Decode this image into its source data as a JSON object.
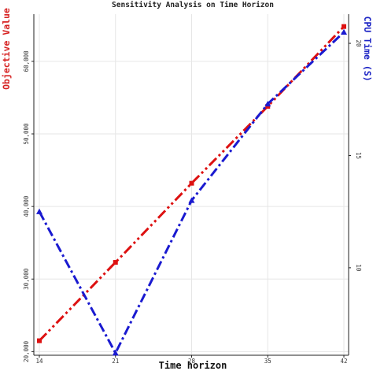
{
  "chart_data": {
    "type": "line",
    "title": "Sensitivity Analysis on Time Horizon",
    "xlabel": "Time horizon",
    "ylabel_left": "Objective Value",
    "ylabel_right": "CPU Time (S)",
    "x": [
      14,
      21,
      28,
      35,
      42
    ],
    "x_ticks": [
      "14",
      "21",
      "28",
      "35",
      "42"
    ],
    "xlim": [
      14,
      42
    ],
    "ylim_left": [
      19500,
      66500
    ],
    "ylim_right": [
      6.1,
      21.3
    ],
    "y_ticks_left": [
      20000,
      30000,
      40000,
      50000,
      60000
    ],
    "y_tick_labels_left": [
      "20,000",
      "30,000",
      "40,000",
      "50,000",
      "60,000"
    ],
    "y_ticks_right": [
      10,
      15,
      20
    ],
    "y_tick_labels_right": [
      "10",
      "15",
      "20"
    ],
    "grid": true,
    "series": [
      {
        "axis": "left",
        "marker": "square",
        "color": "#dd1111",
        "dash": "dash-dot-dot",
        "values": [
          21500,
          32300,
          43200,
          53800,
          64800
        ]
      },
      {
        "axis": "right",
        "marker": "triangle",
        "color": "#1a1ad0",
        "dash": "dash-dot",
        "values": [
          12.5,
          6.2,
          13.0,
          17.3,
          20.5
        ]
      }
    ]
  }
}
